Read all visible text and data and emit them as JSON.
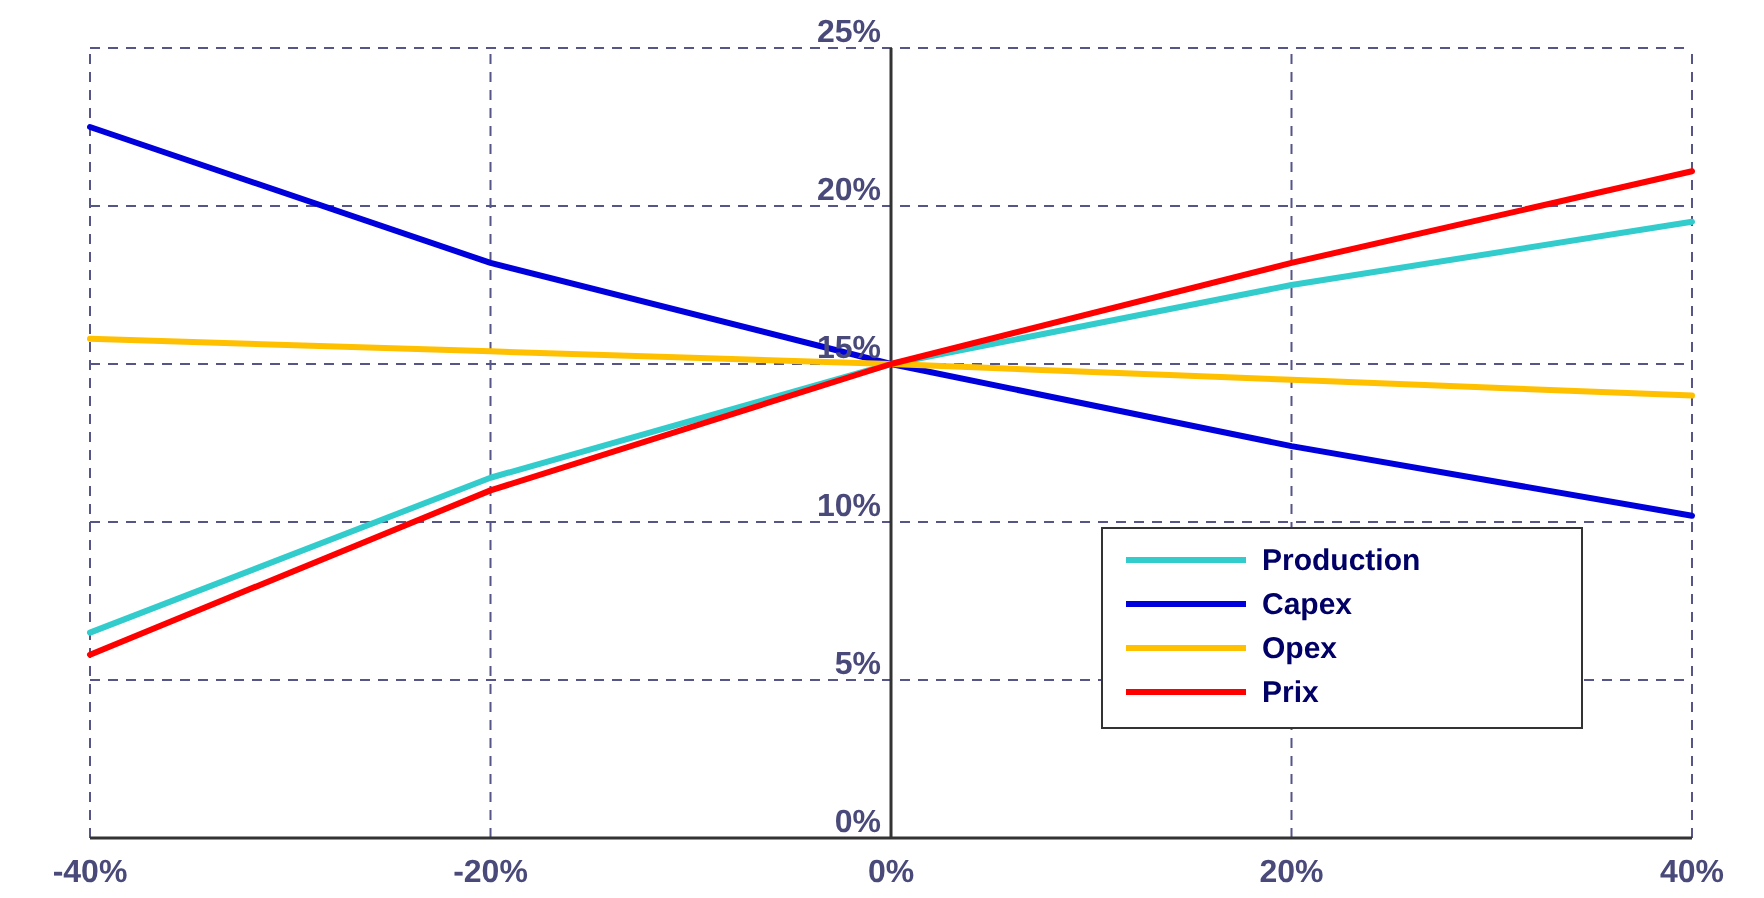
{
  "chart_data": {
    "type": "line",
    "x": [
      -40,
      -20,
      0,
      20,
      40
    ],
    "series": [
      {
        "name": "Production",
        "color": "#33cccc",
        "values": [
          6.5,
          11.4,
          15,
          17.5,
          19.5
        ]
      },
      {
        "name": "Capex",
        "color": "#0000dd",
        "values": [
          22.5,
          18.2,
          15,
          12.4,
          10.2
        ]
      },
      {
        "name": "Opex",
        "color": "#ffc000",
        "values": [
          15.8,
          15.4,
          15,
          14.5,
          14.0
        ]
      },
      {
        "name": "Prix",
        "color": "#ff0000",
        "values": [
          5.8,
          11.0,
          15,
          18.2,
          21.1
        ]
      }
    ],
    "xlim": [
      -40,
      40
    ],
    "xticks": [
      {
        "value": -40,
        "label": "-40%"
      },
      {
        "value": -20,
        "label": "-20%"
      },
      {
        "value": 0,
        "label": "0%"
      },
      {
        "value": 20,
        "label": "20%"
      },
      {
        "value": 40,
        "label": "40%"
      }
    ],
    "ylim": [
      0,
      25
    ],
    "yticks": [
      {
        "value": 0,
        "label": "0%"
      },
      {
        "value": 5,
        "label": "5%"
      },
      {
        "value": 10,
        "label": "10%"
      },
      {
        "value": 15,
        "label": "15%"
      },
      {
        "value": 20,
        "label": "20%"
      },
      {
        "value": 25,
        "label": "25%"
      }
    ],
    "grid": true,
    "legend": "bottom right",
    "marker": "none",
    "line_style": "solid"
  }
}
